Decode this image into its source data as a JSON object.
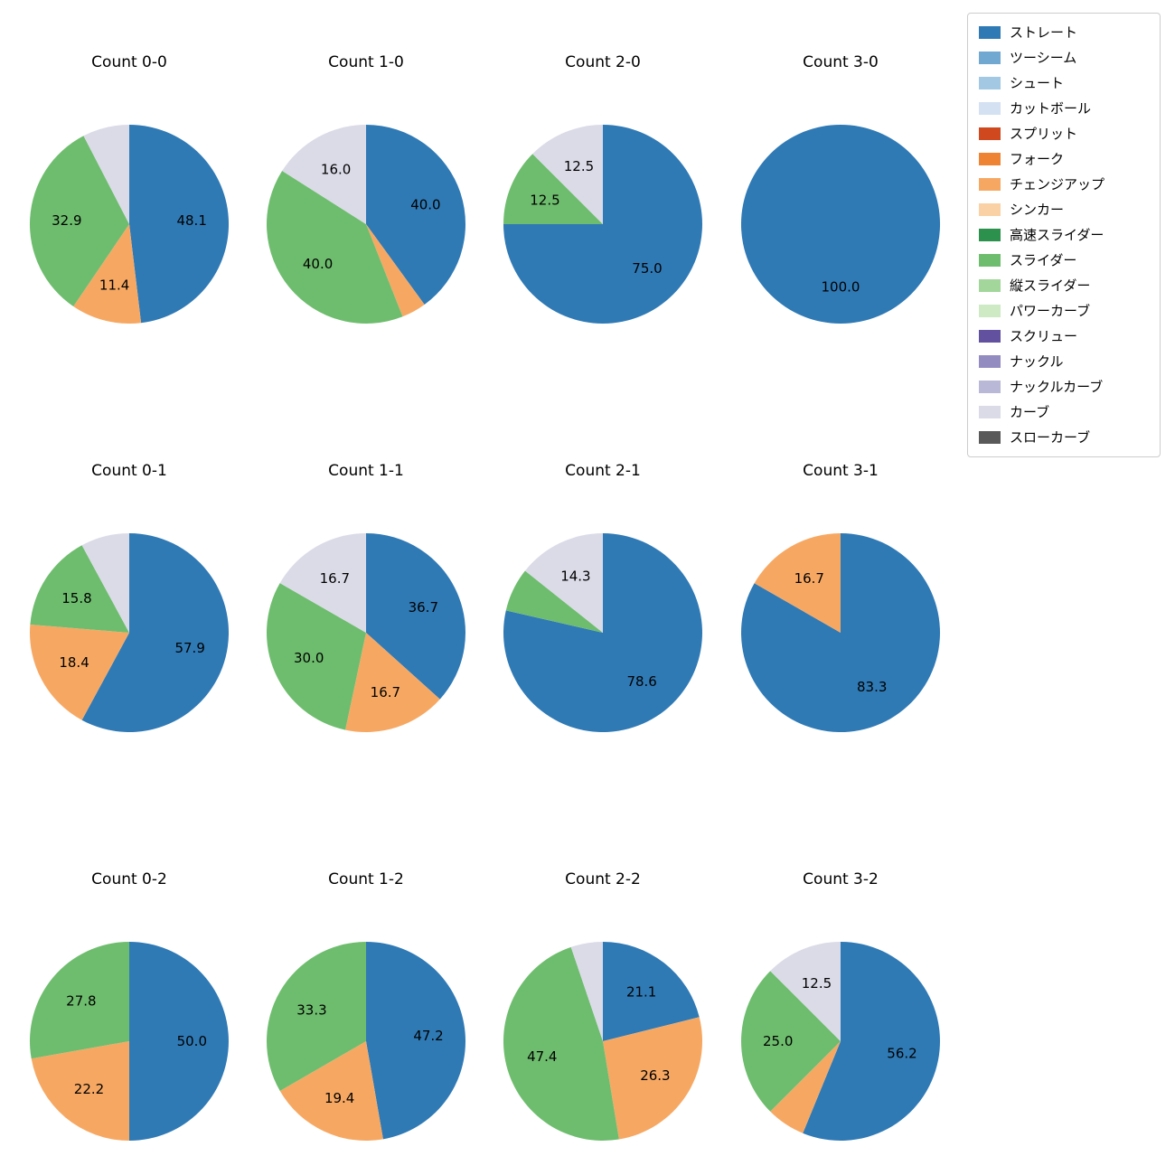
{
  "legend": {
    "items": [
      {
        "label": "ストレート",
        "color": "#2f7ab5"
      },
      {
        "label": "ツーシーム",
        "color": "#71a8d1"
      },
      {
        "label": "シュート",
        "color": "#a3c8e4"
      },
      {
        "label": "カットボール",
        "color": "#d3e1f2"
      },
      {
        "label": "スプリット",
        "color": "#d0491e"
      },
      {
        "label": "フォーク",
        "color": "#ee8433"
      },
      {
        "label": "チェンジアップ",
        "color": "#f6a863"
      },
      {
        "label": "シンカー",
        "color": "#fad1a4"
      },
      {
        "label": "高速スライダー",
        "color": "#2c914c"
      },
      {
        "label": "スライダー",
        "color": "#6ebd6e"
      },
      {
        "label": "縦スライダー",
        "color": "#a2d69a"
      },
      {
        "label": "パワーカーブ",
        "color": "#cdeac4"
      },
      {
        "label": "スクリュー",
        "color": "#61519f"
      },
      {
        "label": "ナックル",
        "color": "#928cc1"
      },
      {
        "label": "ナックルカーブ",
        "color": "#b9b8d6"
      },
      {
        "label": "カーブ",
        "color": "#dbdbe8"
      },
      {
        "label": "スローカーブ",
        "color": "#595959"
      }
    ]
  },
  "chart_data": [
    {
      "type": "pie",
      "title": "Count 0-0",
      "start_angle_deg": 0,
      "direction": "clockwise-from-top",
      "slices": [
        {
          "pitch": "ストレート",
          "value": 48.1,
          "label": "48.1"
        },
        {
          "pitch": "チェンジアップ",
          "value": 11.4,
          "label": "11.4"
        },
        {
          "pitch": "スライダー",
          "value": 32.9,
          "label": "32.9"
        },
        {
          "pitch": "カーブ",
          "value": 7.6,
          "label": null
        }
      ]
    },
    {
      "type": "pie",
      "title": "Count 1-0",
      "start_angle_deg": 0,
      "direction": "clockwise-from-top",
      "slices": [
        {
          "pitch": "ストレート",
          "value": 40.0,
          "label": "40.0"
        },
        {
          "pitch": "チェンジアップ",
          "value": 4.0,
          "label": null
        },
        {
          "pitch": "スライダー",
          "value": 40.0,
          "label": "40.0"
        },
        {
          "pitch": "カーブ",
          "value": 16.0,
          "label": "16.0"
        }
      ]
    },
    {
      "type": "pie",
      "title": "Count 2-0",
      "start_angle_deg": 0,
      "direction": "clockwise-from-top",
      "slices": [
        {
          "pitch": "ストレート",
          "value": 75.0,
          "label": "75.0"
        },
        {
          "pitch": "スライダー",
          "value": 12.5,
          "label": "12.5"
        },
        {
          "pitch": "カーブ",
          "value": 12.5,
          "label": "12.5"
        }
      ]
    },
    {
      "type": "pie",
      "title": "Count 3-0",
      "start_angle_deg": 0,
      "direction": "clockwise-from-top",
      "slices": [
        {
          "pitch": "ストレート",
          "value": 100.0,
          "label": "100.0"
        }
      ]
    },
    {
      "type": "pie",
      "title": "Count 0-1",
      "start_angle_deg": 0,
      "direction": "clockwise-from-top",
      "slices": [
        {
          "pitch": "ストレート",
          "value": 57.9,
          "label": "57.9"
        },
        {
          "pitch": "チェンジアップ",
          "value": 18.4,
          "label": "18.4"
        },
        {
          "pitch": "スライダー",
          "value": 15.8,
          "label": "15.8"
        },
        {
          "pitch": "カーブ",
          "value": 7.9,
          "label": null
        }
      ]
    },
    {
      "type": "pie",
      "title": "Count 1-1",
      "start_angle_deg": 0,
      "direction": "clockwise-from-top",
      "slices": [
        {
          "pitch": "ストレート",
          "value": 36.7,
          "label": "36.7"
        },
        {
          "pitch": "チェンジアップ",
          "value": 16.7,
          "label": "16.7"
        },
        {
          "pitch": "スライダー",
          "value": 30.0,
          "label": "30.0"
        },
        {
          "pitch": "カーブ",
          "value": 16.7,
          "label": "16.7"
        }
      ]
    },
    {
      "type": "pie",
      "title": "Count 2-1",
      "start_angle_deg": 0,
      "direction": "clockwise-from-top",
      "slices": [
        {
          "pitch": "ストレート",
          "value": 78.6,
          "label": "78.6"
        },
        {
          "pitch": "スライダー",
          "value": 7.1,
          "label": null
        },
        {
          "pitch": "カーブ",
          "value": 14.3,
          "label": "14.3"
        }
      ]
    },
    {
      "type": "pie",
      "title": "Count 3-1",
      "start_angle_deg": 0,
      "direction": "clockwise-from-top",
      "slices": [
        {
          "pitch": "ストレート",
          "value": 83.3,
          "label": "83.3"
        },
        {
          "pitch": "チェンジアップ",
          "value": 16.7,
          "label": "16.7"
        }
      ]
    },
    {
      "type": "pie",
      "title": "Count 0-2",
      "start_angle_deg": 0,
      "direction": "clockwise-from-top",
      "slices": [
        {
          "pitch": "ストレート",
          "value": 50.0,
          "label": "50.0"
        },
        {
          "pitch": "チェンジアップ",
          "value": 22.2,
          "label": "22.2"
        },
        {
          "pitch": "スライダー",
          "value": 27.8,
          "label": "27.8"
        }
      ]
    },
    {
      "type": "pie",
      "title": "Count 1-2",
      "start_angle_deg": 0,
      "direction": "clockwise-from-top",
      "slices": [
        {
          "pitch": "ストレート",
          "value": 47.2,
          "label": "47.2"
        },
        {
          "pitch": "チェンジアップ",
          "value": 19.4,
          "label": "19.4"
        },
        {
          "pitch": "スライダー",
          "value": 33.3,
          "label": "33.3"
        }
      ]
    },
    {
      "type": "pie",
      "title": "Count 2-2",
      "start_angle_deg": 0,
      "direction": "clockwise-from-top",
      "slices": [
        {
          "pitch": "ストレート",
          "value": 21.1,
          "label": "21.1"
        },
        {
          "pitch": "チェンジアップ",
          "value": 26.3,
          "label": "26.3"
        },
        {
          "pitch": "スライダー",
          "value": 47.4,
          "label": "47.4"
        },
        {
          "pitch": "カーブ",
          "value": 5.2,
          "label": null
        }
      ]
    },
    {
      "type": "pie",
      "title": "Count 3-2",
      "start_angle_deg": 0,
      "direction": "clockwise-from-top",
      "slices": [
        {
          "pitch": "ストレート",
          "value": 56.2,
          "label": "56.2"
        },
        {
          "pitch": "チェンジアップ",
          "value": 6.3,
          "label": null
        },
        {
          "pitch": "スライダー",
          "value": 25.0,
          "label": "25.0"
        },
        {
          "pitch": "カーブ",
          "value": 12.5,
          "label": "12.5"
        }
      ]
    }
  ]
}
